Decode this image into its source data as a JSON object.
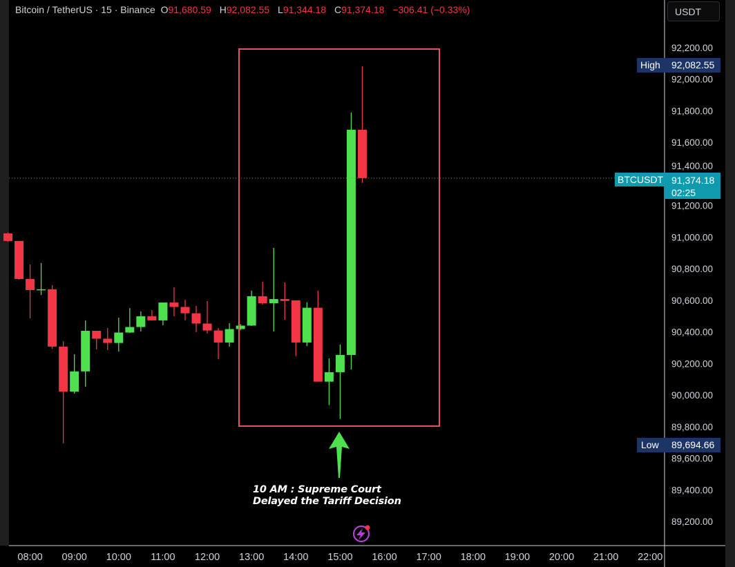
{
  "header": {
    "symbol_title": "Bitcoin / TetherUS · 15 · Binance",
    "open_label": "O",
    "open": "91,680.59",
    "high_label": "H",
    "high": "92,082.55",
    "low_label": "L",
    "low": "91,344.18",
    "close_label": "C",
    "close": "91,374.18",
    "change": "−306.41 (−0.33%)"
  },
  "currency_button": "USDT",
  "markers": {
    "high_label": "High",
    "high_value": "92,082.55",
    "low_label": "Low",
    "low_value": "89,694.66",
    "symbol_label": "BTCUSDT",
    "last_price": "91,374.18",
    "countdown": "02:25"
  },
  "annotation": {
    "line1": "10 AM : Supreme Court",
    "line2": "Delayed the Tariff Decision"
  },
  "colors": {
    "up": "#4ee04f",
    "down": "#f23645",
    "box": "#e8525e",
    "arrow": "#4ee04f",
    "high_low_tag": "#1c3566",
    "last_price_tag": "#0f9bad",
    "event_icon": "#b23fd6"
  },
  "icons": {
    "event": "lightning-event-icon",
    "arrow": "arrow-up-icon"
  },
  "chart_data": {
    "type": "candlestick",
    "interval": "15",
    "ylim": [
      89050,
      92500
    ],
    "yticks": [
      "92,200.00",
      "92,000.00",
      "91,800.00",
      "91,600.00",
      "91,400.00",
      "91,200.00",
      "91,000.00",
      "90,800.00",
      "90,600.00",
      "90,400.00",
      "90,200.00",
      "90,000.00",
      "89,800.00",
      "89,600.00",
      "89,400.00",
      "89,200.00"
    ],
    "ytick_values": [
      92200,
      92000,
      91800,
      91600,
      91400,
      91200,
      91000,
      90800,
      90600,
      90400,
      90200,
      90000,
      89800,
      89600,
      89400,
      89200
    ],
    "xticks": [
      "08:00",
      "09:00",
      "10:00",
      "11:00",
      "12:00",
      "13:00",
      "14:00",
      "15:00",
      "16:00",
      "17:00",
      "18:00",
      "19:00",
      "20:00",
      "21:00",
      "22:00"
    ],
    "start_time": "07:30",
    "candles": [
      {
        "t": "07:30",
        "o": 91024,
        "h": 91030,
        "l": 90971,
        "c": 90976
      },
      {
        "t": "07:45",
        "o": 90976,
        "h": 90976,
        "l": 90731,
        "c": 90735
      },
      {
        "t": "08:00",
        "o": 90735,
        "h": 90827,
        "l": 90486,
        "c": 90665
      },
      {
        "t": "08:15",
        "o": 90665,
        "h": 90836,
        "l": 90634,
        "c": 90670
      },
      {
        "t": "08:30",
        "o": 90670,
        "h": 90696,
        "l": 90293,
        "c": 90307
      },
      {
        "t": "08:45",
        "o": 90307,
        "h": 90341,
        "l": 89695,
        "c": 90022
      },
      {
        "t": "09:00",
        "o": 90022,
        "h": 90258,
        "l": 90009,
        "c": 90150
      },
      {
        "t": "09:15",
        "o": 90150,
        "h": 90473,
        "l": 90053,
        "c": 90407
      },
      {
        "t": "09:30",
        "o": 90407,
        "h": 90407,
        "l": 90289,
        "c": 90357
      },
      {
        "t": "09:45",
        "o": 90357,
        "h": 90425,
        "l": 90285,
        "c": 90330
      },
      {
        "t": "10:00",
        "o": 90330,
        "h": 90490,
        "l": 90276,
        "c": 90396
      },
      {
        "t": "10:15",
        "o": 90396,
        "h": 90551,
        "l": 90394,
        "c": 90431
      },
      {
        "t": "10:30",
        "o": 90431,
        "h": 90530,
        "l": 90403,
        "c": 90499
      },
      {
        "t": "10:45",
        "o": 90499,
        "h": 90538,
        "l": 90473,
        "c": 90473
      },
      {
        "t": "11:00",
        "o": 90473,
        "h": 90586,
        "l": 90442,
        "c": 90586
      },
      {
        "t": "11:15",
        "o": 90586,
        "h": 90683,
        "l": 90499,
        "c": 90558
      },
      {
        "t": "11:30",
        "o": 90558,
        "h": 90604,
        "l": 90473,
        "c": 90518
      },
      {
        "t": "11:45",
        "o": 90518,
        "h": 90565,
        "l": 90399,
        "c": 90453
      },
      {
        "t": "12:00",
        "o": 90453,
        "h": 90595,
        "l": 90390,
        "c": 90409
      },
      {
        "t": "12:15",
        "o": 90409,
        "h": 90425,
        "l": 90228,
        "c": 90333
      },
      {
        "t": "12:30",
        "o": 90333,
        "h": 90455,
        "l": 90307,
        "c": 90418
      },
      {
        "t": "12:45",
        "o": 90418,
        "h": 90450,
        "l": 90410,
        "c": 90440
      },
      {
        "t": "13:00",
        "o": 90440,
        "h": 90661,
        "l": 90438,
        "c": 90626
      },
      {
        "t": "13:15",
        "o": 90626,
        "h": 90718,
        "l": 90573,
        "c": 90582
      },
      {
        "t": "13:30",
        "o": 90582,
        "h": 90932,
        "l": 90403,
        "c": 90608
      },
      {
        "t": "13:45",
        "o": 90608,
        "h": 90713,
        "l": 90477,
        "c": 90596
      },
      {
        "t": "14:00",
        "o": 90600,
        "h": 90600,
        "l": 90247,
        "c": 90333
      },
      {
        "t": "14:15",
        "o": 90333,
        "h": 90588,
        "l": 90311,
        "c": 90553
      },
      {
        "t": "14:30",
        "o": 90553,
        "h": 90661,
        "l": 90085,
        "c": 90085
      },
      {
        "t": "14:45",
        "o": 90085,
        "h": 90232,
        "l": 89937,
        "c": 90145
      },
      {
        "t": "15:00",
        "o": 90145,
        "h": 90320,
        "l": 89849,
        "c": 90254
      },
      {
        "t": "15:15",
        "o": 90254,
        "h": 91789,
        "l": 90162,
        "c": 91680.59
      },
      {
        "t": "15:30",
        "o": 91680.59,
        "h": 92082.55,
        "l": 91344.18,
        "c": 91374.18
      }
    ]
  }
}
